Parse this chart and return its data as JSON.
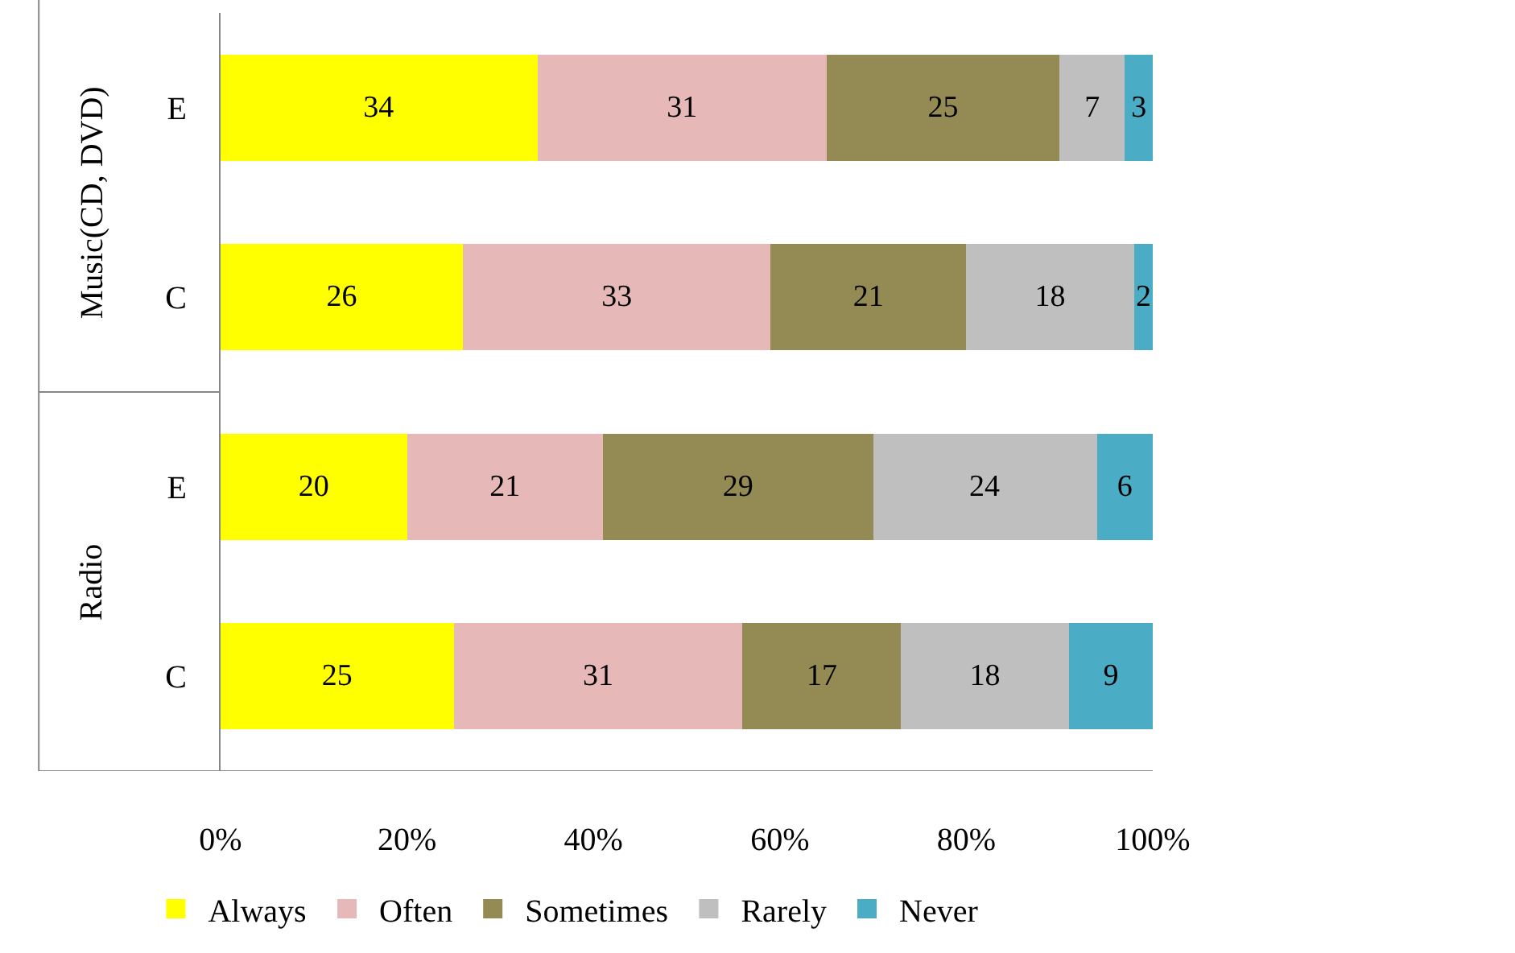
{
  "chart_data": {
    "type": "bar",
    "orientation": "horizontal",
    "stacked": true,
    "data_labels": true,
    "legend": "bottom",
    "categories": [
      "E",
      "C",
      "E",
      "C"
    ],
    "annotations": [
      "Music(CD, DVD)",
      "Radio"
    ],
    "xlim": [
      0,
      100
    ],
    "xticks": [
      {
        "value": 0,
        "label": "0%"
      },
      {
        "value": 20,
        "label": "20%"
      },
      {
        "value": 40,
        "label": "40%"
      },
      {
        "value": 60,
        "label": "60%"
      },
      {
        "value": 80,
        "label": "80%"
      },
      {
        "value": 100,
        "label": "100%"
      }
    ],
    "series": [
      {
        "name": "Always",
        "color": "#ffff00",
        "values": [
          34,
          26,
          20,
          25
        ]
      },
      {
        "name": "Often",
        "color": "#e6b9b8",
        "values": [
          31,
          33,
          21,
          31
        ]
      },
      {
        "name": "Sometimes",
        "color": "#948a54",
        "values": [
          25,
          21,
          29,
          17
        ]
      },
      {
        "name": "Rarely",
        "color": "#bfbfbf",
        "values": [
          7,
          18,
          24,
          18
        ]
      },
      {
        "name": "Never",
        "color": "#4bacc6",
        "values": [
          3,
          2,
          6,
          9
        ]
      }
    ]
  }
}
